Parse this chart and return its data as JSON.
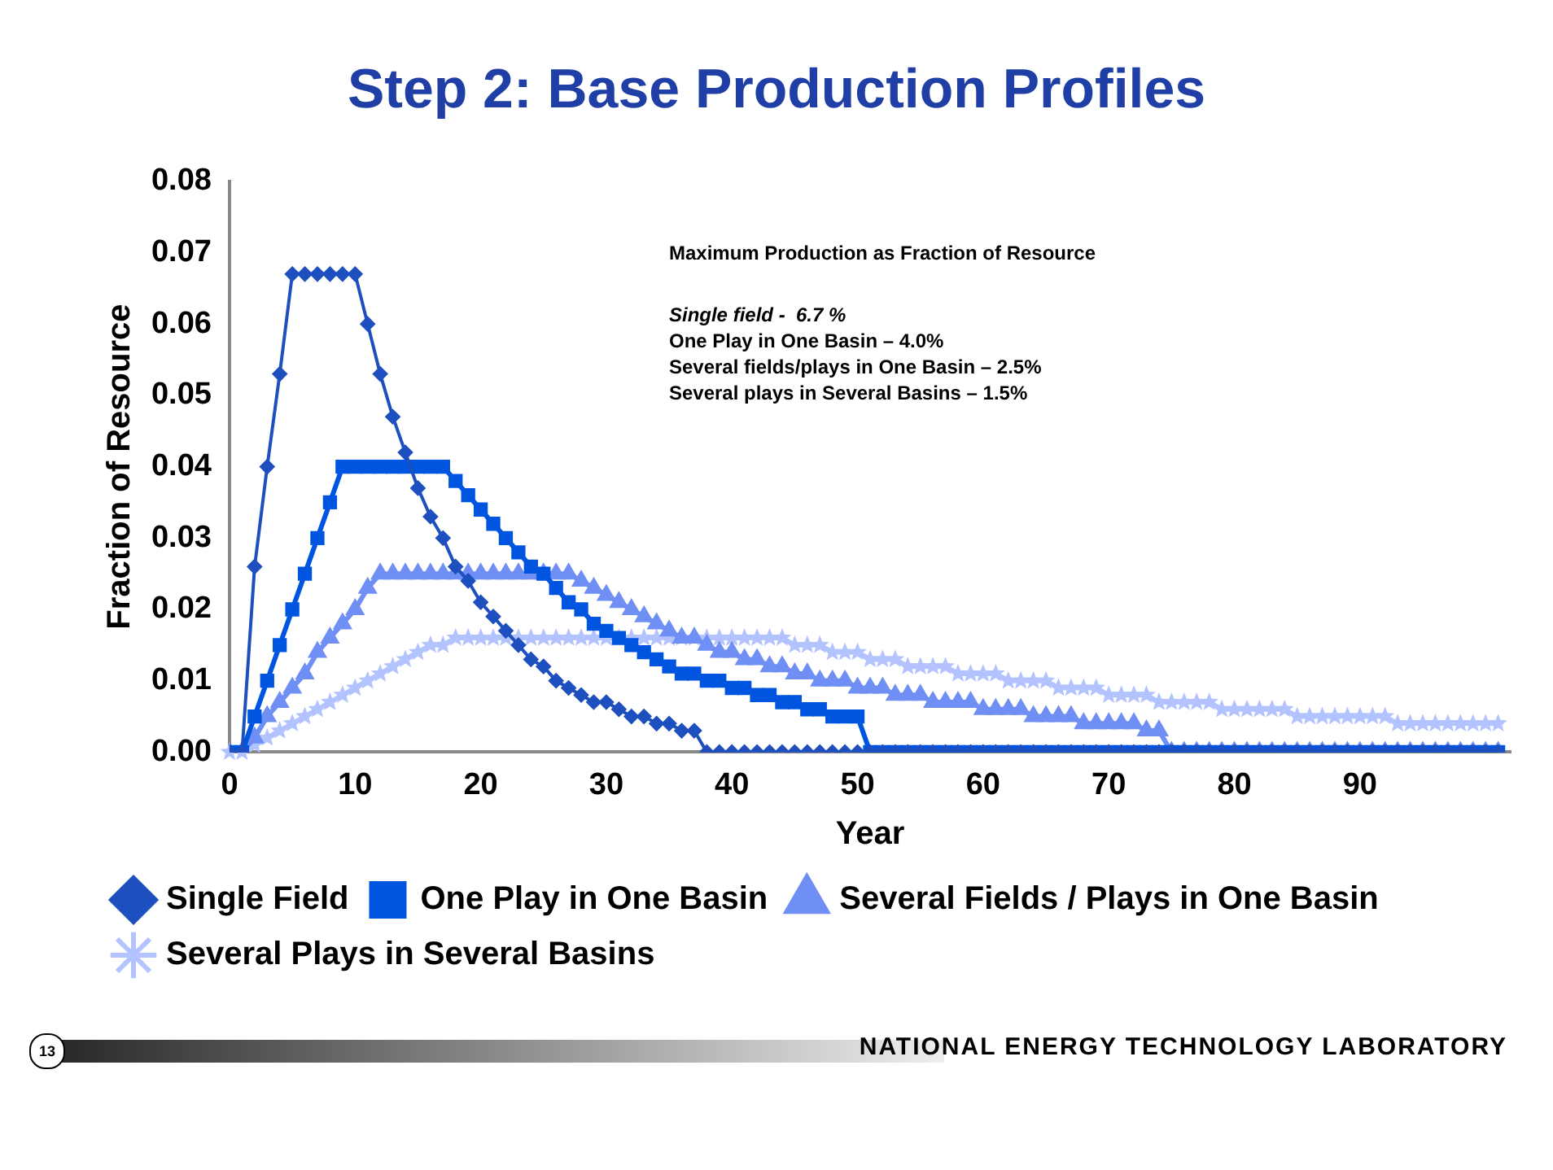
{
  "chart_data": {
    "type": "line",
    "title": "Step 2: Base Production Profiles",
    "xlabel": "Year",
    "ylabel": "Fraction of Resource",
    "x": [
      0,
      1,
      2,
      3,
      4,
      5,
      6,
      7,
      8,
      9,
      10,
      11,
      12,
      13,
      14,
      15,
      16,
      17,
      18,
      19,
      20,
      21,
      22,
      23,
      24,
      25,
      26,
      27,
      28,
      29,
      30,
      31,
      32,
      33,
      34,
      35,
      36,
      37,
      38,
      39,
      40,
      41,
      42,
      43,
      44,
      45,
      46,
      47,
      48,
      49,
      50,
      51,
      52,
      53,
      54,
      55,
      56,
      57,
      58,
      59,
      60,
      61,
      62,
      63,
      64,
      65,
      66,
      67,
      68,
      69,
      70,
      71,
      72,
      73,
      74,
      75,
      76,
      77,
      78,
      79,
      80,
      81,
      82,
      83,
      84,
      85,
      86,
      87,
      88,
      89,
      90,
      91,
      92,
      93,
      94,
      95,
      96,
      97,
      98,
      99,
      100,
      101
    ],
    "series": [
      {
        "name": "Single Field",
        "color": "#1d4fbf",
        "marker": "diamond",
        "values": [
          0,
          0,
          0.026,
          0.04,
          0.053,
          0.067,
          0.067,
          0.067,
          0.067,
          0.067,
          0.067,
          0.06,
          0.053,
          0.047,
          0.042,
          0.037,
          0.033,
          0.03,
          0.026,
          0.024,
          0.021,
          0.019,
          0.017,
          0.015,
          0.013,
          0.012,
          0.01,
          0.009,
          0.008,
          0.007,
          0.007,
          0.006,
          0.005,
          0.005,
          0.004,
          0.004,
          0.003,
          0.003,
          0,
          0,
          0,
          0,
          0,
          0,
          0,
          0,
          0,
          0,
          0,
          0,
          0,
          0,
          0,
          0,
          0,
          0,
          0,
          0,
          0,
          0,
          0,
          0,
          0,
          0,
          0,
          0,
          0,
          0,
          0,
          0,
          0,
          0,
          0,
          0,
          0,
          0,
          0,
          0,
          0,
          0,
          0,
          0,
          0,
          0,
          0,
          0,
          0,
          0,
          0,
          0,
          0,
          0,
          0,
          0,
          0,
          0,
          0,
          0,
          0,
          0,
          0,
          0
        ]
      },
      {
        "name": "One Play in One Basin",
        "color": "#0055e0",
        "marker": "square",
        "values": [
          0,
          0,
          0.005,
          0.01,
          0.015,
          0.02,
          0.025,
          0.03,
          0.035,
          0.04,
          0.04,
          0.04,
          0.04,
          0.04,
          0.04,
          0.04,
          0.04,
          0.04,
          0.038,
          0.036,
          0.034,
          0.032,
          0.03,
          0.028,
          0.026,
          0.025,
          0.023,
          0.021,
          0.02,
          0.018,
          0.017,
          0.016,
          0.015,
          0.014,
          0.013,
          0.012,
          0.011,
          0.011,
          0.01,
          0.01,
          0.009,
          0.009,
          0.008,
          0.008,
          0.007,
          0.007,
          0.006,
          0.006,
          0.005,
          0.005,
          0.005,
          0,
          0,
          0,
          0,
          0,
          0,
          0,
          0,
          0,
          0,
          0,
          0,
          0,
          0,
          0,
          0,
          0,
          0,
          0,
          0,
          0,
          0,
          0,
          0,
          0,
          0,
          0,
          0,
          0,
          0,
          0,
          0,
          0,
          0,
          0,
          0,
          0,
          0,
          0,
          0,
          0,
          0,
          0,
          0,
          0,
          0,
          0,
          0,
          0,
          0,
          0
        ]
      },
      {
        "name": "Several Fields / Plays in One Basin",
        "color": "#6f8ff5",
        "marker": "triangle",
        "values": [
          0,
          0,
          0.002,
          0.005,
          0.007,
          0.009,
          0.011,
          0.014,
          0.016,
          0.018,
          0.02,
          0.023,
          0.025,
          0.025,
          0.025,
          0.025,
          0.025,
          0.025,
          0.025,
          0.025,
          0.025,
          0.025,
          0.025,
          0.025,
          0.025,
          0.025,
          0.025,
          0.025,
          0.024,
          0.023,
          0.022,
          0.021,
          0.02,
          0.019,
          0.018,
          0.017,
          0.016,
          0.016,
          0.015,
          0.014,
          0.014,
          0.013,
          0.013,
          0.012,
          0.012,
          0.011,
          0.011,
          0.01,
          0.01,
          0.01,
          0.009,
          0.009,
          0.009,
          0.008,
          0.008,
          0.008,
          0.007,
          0.007,
          0.007,
          0.007,
          0.006,
          0.006,
          0.006,
          0.006,
          0.005,
          0.005,
          0.005,
          0.005,
          0.004,
          0.004,
          0.004,
          0.004,
          0.004,
          0.003,
          0.003,
          0,
          0,
          0,
          0,
          0,
          0,
          0,
          0,
          0,
          0,
          0,
          0,
          0,
          0,
          0,
          0,
          0,
          0,
          0,
          0,
          0,
          0,
          0,
          0,
          0,
          0,
          0
        ]
      },
      {
        "name": "Several Plays in Several Basins",
        "color": "#b3c3ff",
        "marker": "star",
        "values": [
          0,
          0,
          0.001,
          0.002,
          0.003,
          0.004,
          0.005,
          0.006,
          0.007,
          0.008,
          0.009,
          0.01,
          0.011,
          0.012,
          0.013,
          0.014,
          0.015,
          0.015,
          0.016,
          0.016,
          0.016,
          0.016,
          0.016,
          0.016,
          0.016,
          0.016,
          0.016,
          0.016,
          0.016,
          0.016,
          0.016,
          0.016,
          0.016,
          0.016,
          0.016,
          0.016,
          0.016,
          0.016,
          0.016,
          0.016,
          0.016,
          0.016,
          0.016,
          0.016,
          0.016,
          0.015,
          0.015,
          0.015,
          0.014,
          0.014,
          0.014,
          0.013,
          0.013,
          0.013,
          0.012,
          0.012,
          0.012,
          0.012,
          0.011,
          0.011,
          0.011,
          0.011,
          0.01,
          0.01,
          0.01,
          0.01,
          0.009,
          0.009,
          0.009,
          0.009,
          0.008,
          0.008,
          0.008,
          0.008,
          0.007,
          0.007,
          0.007,
          0.007,
          0.007,
          0.006,
          0.006,
          0.006,
          0.006,
          0.006,
          0.006,
          0.005,
          0.005,
          0.005,
          0.005,
          0.005,
          0.005,
          0.005,
          0.005,
          0.004,
          0.004,
          0.004,
          0.004,
          0.004,
          0.004,
          0.004,
          0.004,
          0.004
        ]
      }
    ],
    "xlim": [
      0,
      102
    ],
    "xticks": [
      0,
      10,
      20,
      30,
      40,
      50,
      60,
      70,
      80,
      90
    ],
    "ylim": [
      0,
      0.08
    ],
    "yticks": [
      {
        "value": 0,
        "label": "0.00"
      },
      {
        "value": 0.01,
        "label": "0.01"
      },
      {
        "value": 0.02,
        "label": "0.02"
      },
      {
        "value": 0.03,
        "label": "0.03"
      },
      {
        "value": 0.04,
        "label": "0.04"
      },
      {
        "value": 0.05,
        "label": "0.05"
      },
      {
        "value": 0.06,
        "label": "0.06"
      },
      {
        "value": 0.07,
        "label": "0.07"
      },
      {
        "value": 0.08,
        "label": "0.08"
      }
    ],
    "grid": false,
    "legend": "bottom",
    "line_style": "solid",
    "annotations": [
      "Maximum Production as Fraction of Resource",
      "Single field -  6.7 %",
      "One Play in One Basin – 4.0%",
      "Several fields/plays in One Basin – 2.5%",
      "Several plays in Several Basins – 1.5%",
      "13",
      "NATIONAL ENERGY TECHNOLOGY LABORATORY"
    ]
  }
}
